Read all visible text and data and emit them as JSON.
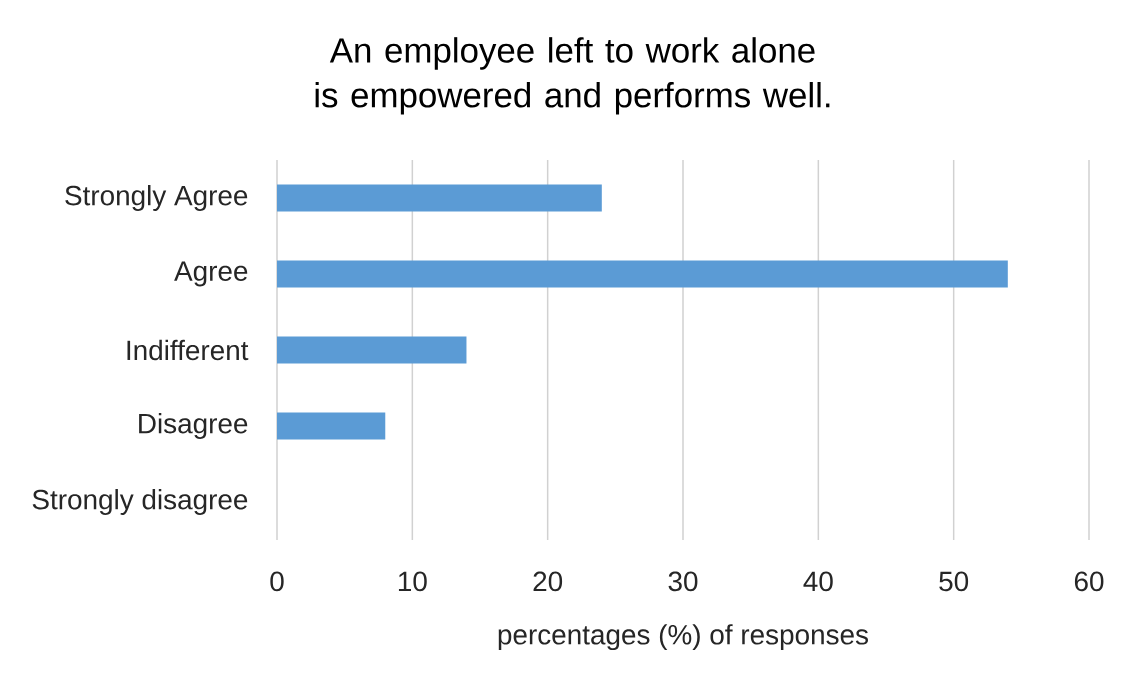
{
  "chart_data": {
    "type": "bar",
    "orientation": "horizontal",
    "title": "An employee left to work alone is empowered and performs well.",
    "xlabel": "percentages  (%) of responses",
    "categories": [
      "Strongly Agree",
      "Agree",
      "Indifferent",
      "Disagree",
      "Strongly disagree"
    ],
    "values": [
      24,
      54,
      14,
      8,
      0
    ],
    "color": "#5b9bd5",
    "xlim": [
      0,
      60
    ],
    "xticks": [
      0,
      10,
      20,
      30,
      40,
      50,
      60
    ],
    "grid": "x"
  }
}
